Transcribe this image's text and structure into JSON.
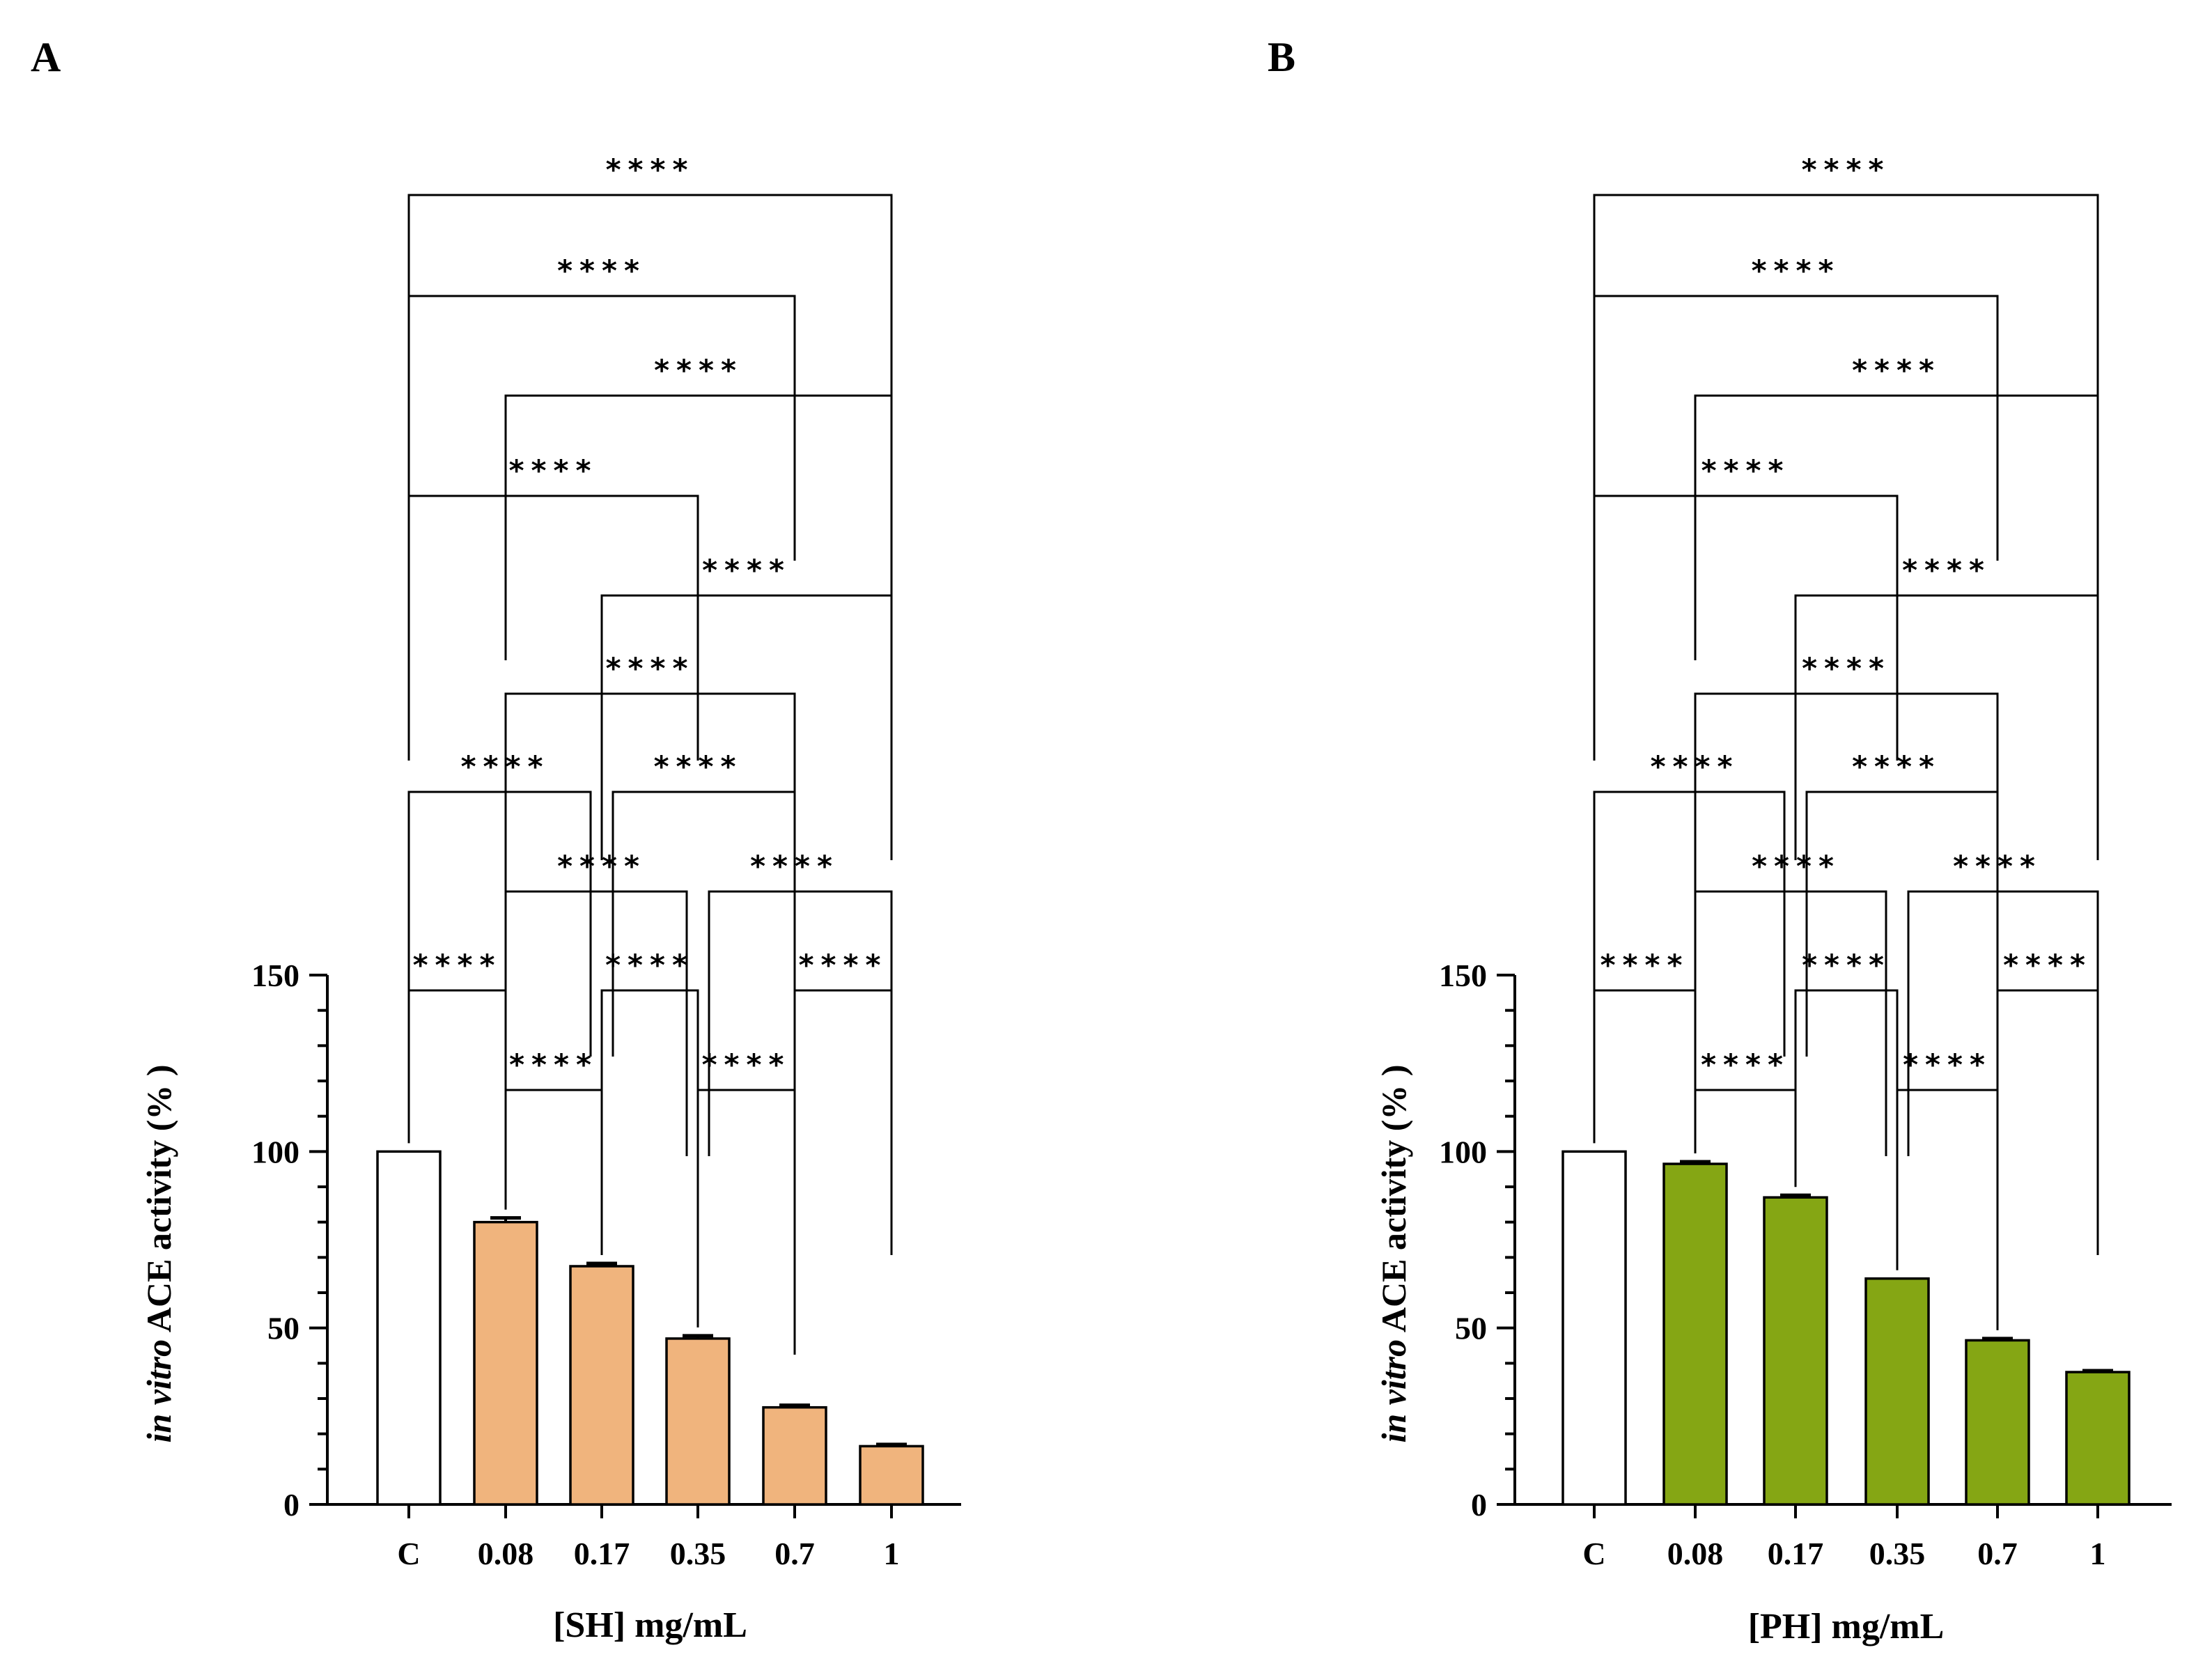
{
  "chart_data": [
    {
      "panel": "A",
      "type": "bar",
      "categories": [
        "C",
        "0.08",
        "0.17",
        "0.35",
        "0.7",
        "1"
      ],
      "values": [
        100,
        80,
        67.5,
        47,
        27.5,
        16.5
      ],
      "errors": [
        0,
        1.2,
        0.8,
        0.8,
        0.6,
        0.5
      ],
      "bar_colors": [
        "#ffffff",
        "#f0b47d",
        "#f0b47d",
        "#f0b47d",
        "#f0b47d",
        "#f0b47d"
      ],
      "ylabel_italic": "in vitro",
      "ylabel_rest": " ACE activity (% )",
      "xlabel": "[SH] mg/mL",
      "ylim": [
        0,
        150
      ],
      "yticks": [
        "0",
        "50",
        "100",
        "150"
      ],
      "comparisons": [
        {
          "i": 0,
          "j": 5,
          "label": "****"
        },
        {
          "i": 0,
          "j": 4,
          "label": "****"
        },
        {
          "i": 1,
          "j": 5,
          "label": "****"
        },
        {
          "i": 0,
          "j": 3,
          "label": "****"
        },
        {
          "i": 2,
          "j": 5,
          "label": "****"
        },
        {
          "i": 1,
          "j": 4,
          "label": "****"
        },
        {
          "i": 0,
          "j": 2,
          "label": "****"
        },
        {
          "i": 2,
          "j": 4,
          "label": "****"
        },
        {
          "i": 1,
          "j": 3,
          "label": "****"
        },
        {
          "i": 3,
          "j": 5,
          "label": "****"
        },
        {
          "i": 0,
          "j": 1,
          "label": "****"
        },
        {
          "i": 2,
          "j": 3,
          "label": "****"
        },
        {
          "i": 4,
          "j": 5,
          "label": "****"
        },
        {
          "i": 1,
          "j": 2,
          "label": "****"
        },
        {
          "i": 3,
          "j": 4,
          "label": "****"
        }
      ]
    },
    {
      "panel": "B",
      "type": "bar",
      "categories": [
        "C",
        "0.08",
        "0.17",
        "0.35",
        "0.7",
        "1"
      ],
      "values": [
        100,
        96.5,
        87,
        64,
        46.5,
        37.5
      ],
      "errors": [
        0,
        0.6,
        0.6,
        0,
        0.5,
        0.4
      ],
      "bar_colors": [
        "#ffffff",
        "#85a614",
        "#85a614",
        "#85a614",
        "#85a614",
        "#85a614"
      ],
      "ylabel_italic": "in vitro",
      "ylabel_rest": " ACE activity (% )",
      "xlabel": "[PH] mg/mL",
      "ylim": [
        0,
        150
      ],
      "yticks": [
        "0",
        "50",
        "100",
        "150"
      ],
      "comparisons": [
        {
          "i": 0,
          "j": 5,
          "label": "****"
        },
        {
          "i": 0,
          "j": 4,
          "label": "****"
        },
        {
          "i": 1,
          "j": 5,
          "label": "****"
        },
        {
          "i": 0,
          "j": 3,
          "label": "****"
        },
        {
          "i": 2,
          "j": 5,
          "label": "****"
        },
        {
          "i": 1,
          "j": 4,
          "label": "****"
        },
        {
          "i": 0,
          "j": 2,
          "label": "****"
        },
        {
          "i": 2,
          "j": 4,
          "label": "****"
        },
        {
          "i": 1,
          "j": 3,
          "label": "****"
        },
        {
          "i": 3,
          "j": 5,
          "label": "****"
        },
        {
          "i": 0,
          "j": 1,
          "label": "****"
        },
        {
          "i": 2,
          "j": 3,
          "label": "****"
        },
        {
          "i": 4,
          "j": 5,
          "label": "****"
        },
        {
          "i": 1,
          "j": 2,
          "label": "****"
        },
        {
          "i": 3,
          "j": 4,
          "label": "****"
        }
      ]
    }
  ]
}
